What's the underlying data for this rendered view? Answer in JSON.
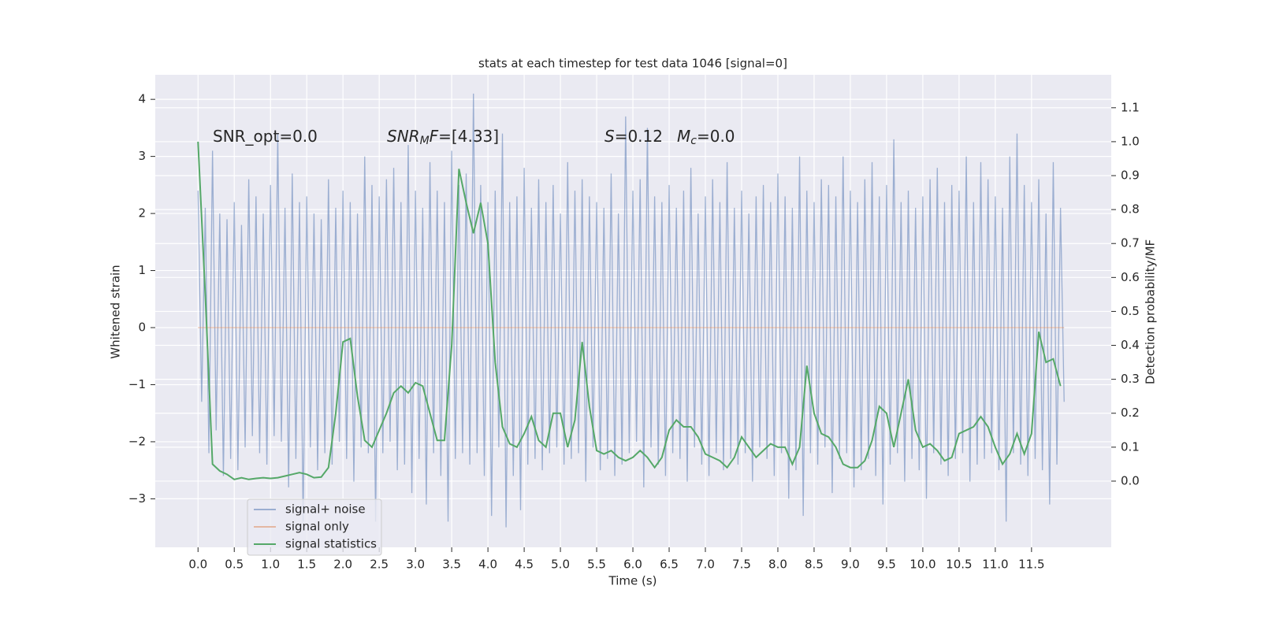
{
  "chart_data": {
    "type": "line",
    "title": "stats at each timestep for test data 1046 [signal=0]",
    "xlabel": "Time (s)",
    "ylabel": "Whitened strain",
    "y2label": "Detection probability/MF",
    "grid": true,
    "background": "#eaeaf2",
    "xlim": [
      -0.59,
      12.6
    ],
    "ylim": [
      -3.85,
      4.43
    ],
    "y2lim": [
      -0.195,
      1.197
    ],
    "xticks": [
      {
        "value": 0,
        "label": "0.0"
      },
      {
        "value": 0.5,
        "label": "0.5"
      },
      {
        "value": 1,
        "label": "1.0"
      },
      {
        "value": 1.5,
        "label": "1.5"
      },
      {
        "value": 2,
        "label": "2.0"
      },
      {
        "value": 2.5,
        "label": "2.5"
      },
      {
        "value": 3,
        "label": "3.0"
      },
      {
        "value": 3.5,
        "label": "3.5"
      },
      {
        "value": 4,
        "label": "4.0"
      },
      {
        "value": 4.5,
        "label": "4.5"
      },
      {
        "value": 5,
        "label": "5.0"
      },
      {
        "value": 5.5,
        "label": "5.5"
      },
      {
        "value": 6,
        "label": "6.0"
      },
      {
        "value": 6.5,
        "label": "6.5"
      },
      {
        "value": 7,
        "label": "7.0"
      },
      {
        "value": 7.5,
        "label": "7.5"
      },
      {
        "value": 8,
        "label": "8.0"
      },
      {
        "value": 8.5,
        "label": "8.5"
      },
      {
        "value": 9,
        "label": "9.0"
      },
      {
        "value": 9.5,
        "label": "9.5"
      },
      {
        "value": 10,
        "label": "10.0"
      },
      {
        "value": 10.5,
        "label": "10.5"
      },
      {
        "value": 11,
        "label": "11.0"
      },
      {
        "value": 11.5,
        "label": "11.5"
      }
    ],
    "yticks": [
      {
        "value": -3,
        "label": "−3"
      },
      {
        "value": -2,
        "label": "−2"
      },
      {
        "value": -1,
        "label": "−1"
      },
      0,
      1,
      2,
      3,
      4
    ],
    "y2ticks": [
      {
        "value": 0,
        "label": "0.0"
      },
      {
        "value": 0.1,
        "label": "0.1"
      },
      {
        "value": 0.2,
        "label": "0.2"
      },
      {
        "value": 0.3,
        "label": "0.3"
      },
      {
        "value": 0.4,
        "label": "0.4"
      },
      {
        "value": 0.5,
        "label": "0.5"
      },
      {
        "value": 0.6,
        "label": "0.6"
      },
      {
        "value": 0.7,
        "label": "0.7"
      },
      {
        "value": 0.8,
        "label": "0.8"
      },
      {
        "value": 0.9,
        "label": "0.9"
      },
      {
        "value": 1,
        "label": "1.0"
      },
      {
        "value": 1.1,
        "label": "1.1"
      }
    ],
    "annotations": [
      [
        {
          "text": "SNR_opt=0.0"
        }
      ],
      [
        {
          "text": "SNR",
          "style": "italic"
        },
        {
          "text": "M",
          "style": "italic-sub"
        },
        {
          "text": "F",
          "style": "italic"
        },
        {
          "text": "=[4.33]"
        }
      ],
      [
        {
          "text": "S",
          "style": "italic"
        },
        {
          "text": "=0.12"
        }
      ],
      [
        {
          "text": "M",
          "style": "italic"
        },
        {
          "text": "c",
          "style": "italic-sub"
        },
        {
          "text": "=0.0"
        }
      ]
    ],
    "series": [
      {
        "name": "signal+ noise",
        "color": "#4c72b0",
        "opacity": 0.5,
        "axis": "y",
        "x": [
          0,
          0.05,
          0.1,
          0.15,
          0.2,
          0.25,
          0.3,
          0.35,
          0.4,
          0.45,
          0.5,
          0.55,
          0.6,
          0.65,
          0.7,
          0.75,
          0.8,
          0.85,
          0.9,
          0.95,
          1,
          1.05,
          1.1,
          1.15,
          1.2,
          1.25,
          1.3,
          1.35,
          1.4,
          1.45,
          1.5,
          1.55,
          1.6,
          1.65,
          1.7,
          1.75,
          1.8,
          1.85,
          1.9,
          1.95,
          2,
          2.05,
          2.1,
          2.15,
          2.2,
          2.25,
          2.3,
          2.35,
          2.4,
          2.45,
          2.5,
          2.55,
          2.6,
          2.65,
          2.7,
          2.75,
          2.8,
          2.85,
          2.9,
          2.95,
          3,
          3.05,
          3.1,
          3.15,
          3.2,
          3.25,
          3.3,
          3.35,
          3.4,
          3.45,
          3.5,
          3.55,
          3.6,
          3.65,
          3.7,
          3.75,
          3.8,
          3.85,
          3.9,
          3.95,
          4,
          4.05,
          4.1,
          4.15,
          4.2,
          4.25,
          4.3,
          4.35,
          4.4,
          4.45,
          4.5,
          4.55,
          4.6,
          4.65,
          4.7,
          4.75,
          4.8,
          4.85,
          4.9,
          4.95,
          5,
          5.05,
          5.1,
          5.15,
          5.2,
          5.25,
          5.3,
          5.35,
          5.4,
          5.45,
          5.5,
          5.55,
          5.6,
          5.65,
          5.7,
          5.75,
          5.8,
          5.85,
          5.9,
          5.95,
          6,
          6.05,
          6.1,
          6.15,
          6.2,
          6.25,
          6.3,
          6.35,
          6.4,
          6.45,
          6.5,
          6.55,
          6.6,
          6.65,
          6.7,
          6.75,
          6.8,
          6.85,
          6.9,
          6.95,
          7,
          7.05,
          7.1,
          7.15,
          7.2,
          7.25,
          7.3,
          7.35,
          7.4,
          7.45,
          7.5,
          7.55,
          7.6,
          7.65,
          7.7,
          7.75,
          7.8,
          7.85,
          7.9,
          7.95,
          8,
          8.05,
          8.1,
          8.15,
          8.2,
          8.25,
          8.3,
          8.35,
          8.4,
          8.45,
          8.5,
          8.55,
          8.6,
          8.65,
          8.7,
          8.75,
          8.8,
          8.85,
          8.9,
          8.95,
          9,
          9.05,
          9.1,
          9.15,
          9.2,
          9.25,
          9.3,
          9.35,
          9.4,
          9.45,
          9.5,
          9.55,
          9.6,
          9.65,
          9.7,
          9.75,
          9.8,
          9.85,
          9.9,
          9.95,
          10,
          10.05,
          10.1,
          10.15,
          10.2,
          10.25,
          10.3,
          10.35,
          10.4,
          10.45,
          10.5,
          10.55,
          10.6,
          10.65,
          10.7,
          10.75,
          10.8,
          10.85,
          10.9,
          10.95,
          11,
          11.05,
          11.1,
          11.15,
          11.2,
          11.25,
          11.3,
          11.35,
          11.4,
          11.45,
          11.5,
          11.55,
          11.6,
          11.65,
          11.7,
          11.75,
          11.8,
          11.85,
          11.9,
          11.95
        ],
        "values": [
          2.4,
          -1.3,
          2.1,
          -2.2,
          3.1,
          -1.8,
          2.0,
          -2.6,
          1.9,
          -2.3,
          2.2,
          -2.5,
          1.8,
          -2.1,
          2.6,
          -1.9,
          2.3,
          -2.2,
          2.0,
          -2.4,
          2.5,
          -1.9,
          3.4,
          -2.0,
          2.1,
          -2.8,
          2.7,
          -2.3,
          2.2,
          -3.4,
          2.3,
          -2.1,
          2.0,
          -2.5,
          1.9,
          -2.2,
          2.6,
          -2.4,
          2.1,
          -2.0,
          2.4,
          -2.3,
          2.2,
          -2.7,
          2.0,
          -2.1,
          3.0,
          -2.2,
          2.5,
          -3.4,
          2.3,
          -2.2,
          2.6,
          -2.0,
          2.8,
          -2.5,
          2.2,
          -2.4,
          3.2,
          -2.9,
          2.4,
          -2.3,
          2.1,
          -3.1,
          2.9,
          -2.2,
          2.4,
          -2.6,
          2.2,
          -3.4,
          3.1,
          -2.3,
          2.5,
          -2.2,
          2.7,
          -2.4,
          4.1,
          -2.2,
          2.5,
          -2.6,
          2.2,
          -3.3,
          2.4,
          -2.1,
          3.4,
          -3.5,
          2.2,
          -2.6,
          2.3,
          -3.2,
          2.8,
          -2.4,
          2.1,
          -2.3,
          2.6,
          -2.5,
          2.2,
          -2.2,
          2.5,
          -2.1,
          2.0,
          -2.4,
          2.9,
          -2.3,
          2.4,
          -2.2,
          2.6,
          -2.7,
          2.3,
          -2.1,
          2.2,
          -2.5,
          2.1,
          -2.3,
          2.7,
          -2.6,
          2.0,
          -2.4,
          3.7,
          -2.2,
          2.4,
          -2.0,
          2.6,
          -2.8,
          3.5,
          -2.1,
          2.3,
          -2.4,
          2.2,
          -2.6,
          2.5,
          -2.2,
          2.1,
          -2.3,
          2.4,
          -2.7,
          2.8,
          -2.1,
          2.0,
          -2.4,
          2.3,
          -2.6,
          2.6,
          -2.2,
          2.2,
          -2.5,
          2.9,
          -2.3,
          2.1,
          -2.4,
          2.4,
          -2.2,
          2.0,
          -2.7,
          2.3,
          -2.1,
          2.5,
          -2.3,
          2.2,
          -2.6,
          2.7,
          -2.2,
          2.3,
          -3.0,
          2.1,
          -2.5,
          3.0,
          -3.3,
          2.4,
          -2.2,
          2.2,
          -2.4,
          2.6,
          -2.1,
          2.5,
          -2.9,
          2.3,
          -2.3,
          3.0,
          -2.2,
          2.4,
          -2.8,
          2.2,
          -2.5,
          2.6,
          -2.3,
          2.9,
          -2.6,
          2.3,
          -3.1,
          2.5,
          -2.4,
          3.3,
          -2.2,
          2.2,
          -2.7,
          2.4,
          -2.3,
          2.1,
          -2.5,
          2.3,
          -3.0,
          2.6,
          -2.2,
          2.8,
          -2.4,
          2.2,
          -2.6,
          2.5,
          -2.3,
          2.4,
          -2.2,
          3.0,
          -2.7,
          2.2,
          -2.4,
          2.9,
          -2.3,
          2.6,
          -2.2,
          2.3,
          -2.5,
          2.1,
          -3.4,
          3.0,
          -2.2,
          3.4,
          -2.4,
          2.5,
          -2.6,
          2.2,
          -2.3,
          2.6,
          -2.5,
          2.0,
          -3.1,
          2.9,
          -2.4,
          2.1,
          -1.3
        ]
      },
      {
        "name": "signal only",
        "color": "#dd8452",
        "opacity": 0.5,
        "axis": "y",
        "x": [
          0,
          11.95
        ],
        "values": [
          0,
          0
        ]
      },
      {
        "name": "signal statistics",
        "color": "#55a868",
        "opacity": 1,
        "axis": "y2",
        "x": [
          0,
          0.1,
          0.2,
          0.3,
          0.4,
          0.5,
          0.6,
          0.7,
          0.8,
          0.9,
          1,
          1.1,
          1.2,
          1.3,
          1.4,
          1.5,
          1.6,
          1.7,
          1.8,
          1.9,
          2,
          2.1,
          2.2,
          2.3,
          2.4,
          2.5,
          2.6,
          2.7,
          2.8,
          2.9,
          3,
          3.1,
          3.2,
          3.3,
          3.4,
          3.5,
          3.6,
          3.7,
          3.8,
          3.9,
          4,
          4.1,
          4.2,
          4.3,
          4.4,
          4.5,
          4.6,
          4.7,
          4.8,
          4.9,
          5,
          5.1,
          5.2,
          5.3,
          5.4,
          5.5,
          5.6,
          5.7,
          5.8,
          5.9,
          6,
          6.1,
          6.2,
          6.3,
          6.4,
          6.5,
          6.6,
          6.7,
          6.8,
          6.9,
          7,
          7.1,
          7.2,
          7.3,
          7.4,
          7.5,
          7.6,
          7.7,
          7.8,
          7.9,
          8,
          8.1,
          8.2,
          8.3,
          8.4,
          8.5,
          8.6,
          8.7,
          8.8,
          8.9,
          9,
          9.1,
          9.2,
          9.3,
          9.4,
          9.5,
          9.6,
          9.7,
          9.8,
          9.9,
          10,
          10.1,
          10.2,
          10.3,
          10.4,
          10.5,
          10.6,
          10.7,
          10.8,
          10.9,
          11,
          11.1,
          11.2,
          11.3,
          11.4,
          11.5,
          11.6,
          11.7,
          11.8,
          11.9
        ],
        "values": [
          1.0,
          0.55,
          0.05,
          0.03,
          0.02,
          0.005,
          0.01,
          0.005,
          0.008,
          0.01,
          0.008,
          0.01,
          0.015,
          0.02,
          0.025,
          0.02,
          0.01,
          0.012,
          0.04,
          0.2,
          0.41,
          0.42,
          0.25,
          0.12,
          0.1,
          0.15,
          0.2,
          0.26,
          0.28,
          0.26,
          0.29,
          0.28,
          0.2,
          0.12,
          0.12,
          0.4,
          0.92,
          0.82,
          0.73,
          0.82,
          0.7,
          0.35,
          0.16,
          0.11,
          0.1,
          0.14,
          0.19,
          0.12,
          0.1,
          0.2,
          0.2,
          0.1,
          0.18,
          0.41,
          0.22,
          0.09,
          0.08,
          0.09,
          0.07,
          0.06,
          0.07,
          0.09,
          0.07,
          0.04,
          0.07,
          0.15,
          0.18,
          0.16,
          0.16,
          0.13,
          0.08,
          0.07,
          0.06,
          0.04,
          0.07,
          0.13,
          0.1,
          0.07,
          0.09,
          0.11,
          0.1,
          0.1,
          0.05,
          0.1,
          0.34,
          0.2,
          0.14,
          0.13,
          0.1,
          0.05,
          0.04,
          0.04,
          0.06,
          0.12,
          0.22,
          0.2,
          0.1,
          0.2,
          0.3,
          0.15,
          0.1,
          0.11,
          0.09,
          0.06,
          0.07,
          0.14,
          0.15,
          0.16,
          0.19,
          0.16,
          0.1,
          0.05,
          0.08,
          0.14,
          0.08,
          0.14,
          0.44,
          0.35,
          0.36,
          0.28
        ]
      }
    ]
  }
}
